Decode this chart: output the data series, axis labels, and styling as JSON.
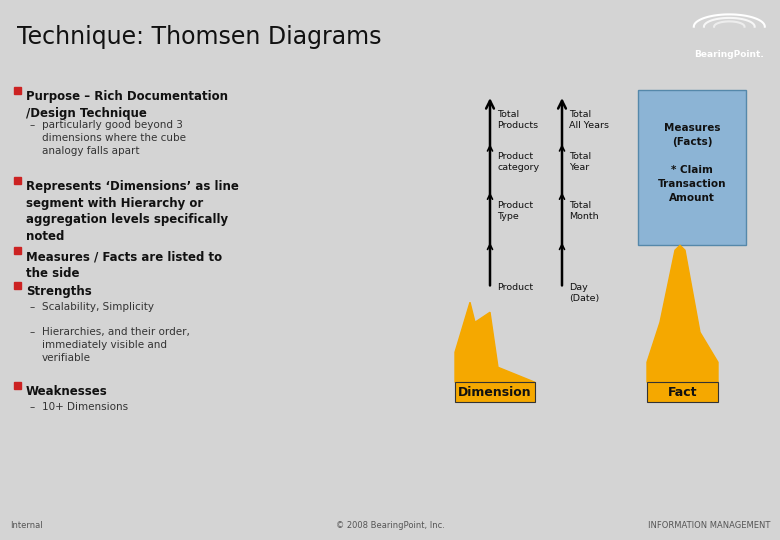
{
  "title": "Technique: Thomsen Diagrams",
  "title_bg": "#d4d4d4",
  "slide_bg": "#d4d4d4",
  "content_bg": "#ffffff",
  "red_bullet": "#cc2222",
  "dim_labels_top_to_bottom": [
    "Total\nProducts",
    "Product\ncategory",
    "Product\nType",
    "Product"
  ],
  "dim2_labels_top_to_bottom": [
    "Total\nAll Years",
    "Total\nYear",
    "Total\nMonth",
    "Day\n(Date)"
  ],
  "measures_box_line1": "Measures",
  "measures_box_line2": "(Facts)",
  "measures_box_line3": "* Claim",
  "measures_box_line4": "Transaction",
  "measures_box_line5": "Amount",
  "dimension_label": "Dimension",
  "fact_label": "Fact",
  "footer_left": "Internal",
  "footer_center": "© 2008 BearingPoint, Inc.",
  "footer_right": "INFORMATION MANAGEMENT",
  "gold_color": "#F5A800",
  "blue_box_color": "#8CB4D5",
  "logo_bg": "#cc2222",
  "logo_text_color": "#ffffff",
  "arrow_color": "#000000",
  "figwidth": 7.8,
  "figheight": 5.4,
  "dpi": 100
}
